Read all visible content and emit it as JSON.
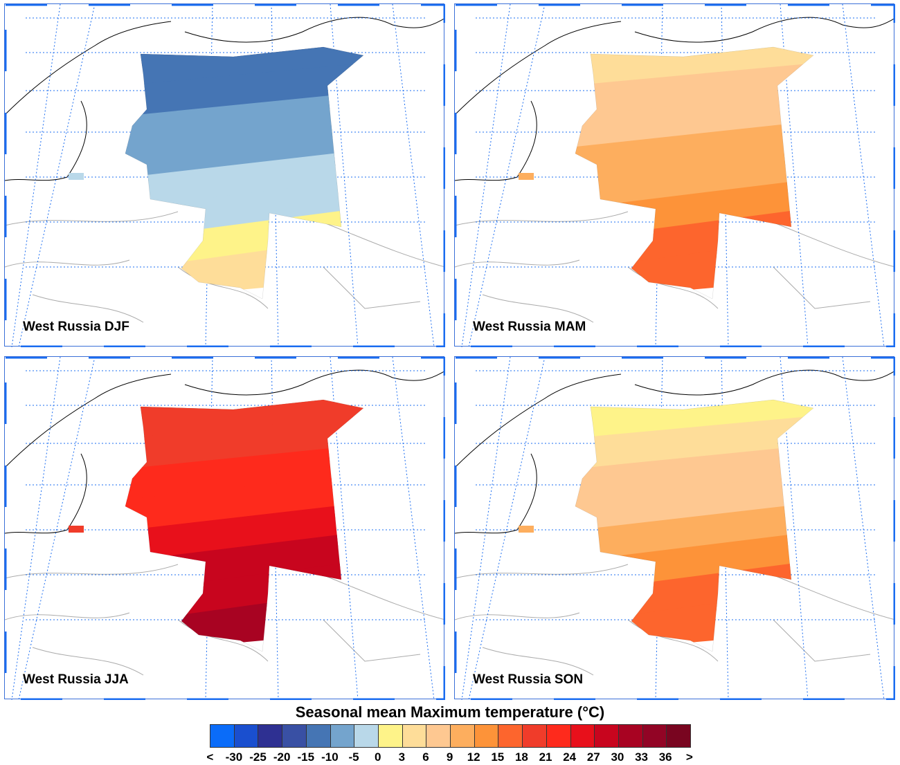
{
  "panels": [
    {
      "title": "West Russia DJF",
      "bands": [
        "#3950a4",
        "#4575b4",
        "#4575b4",
        "#74a4cd",
        "#74a4cd",
        "#b9d8e9",
        "#b9d8e9",
        "#fef389",
        "#fedd99"
      ]
    },
    {
      "title": "West Russia MAM",
      "bands": [
        "#fef389",
        "#fedd99",
        "#fec891",
        "#fec891",
        "#fdae5e",
        "#fdae5e",
        "#fd9339",
        "#fd652d",
        "#fd652d"
      ]
    },
    {
      "title": "West Russia JJA",
      "bands": [
        "#fd652d",
        "#f03c2a",
        "#f03c2a",
        "#fe2a1c",
        "#fe2a1c",
        "#e8101b",
        "#c8051e",
        "#c8051e",
        "#a80322"
      ]
    },
    {
      "title": "West Russia SON",
      "bands": [
        "#fef389",
        "#fef389",
        "#fedd99",
        "#fec891",
        "#fec891",
        "#fdae5e",
        "#fd9339",
        "#fd652d",
        "#fd652d"
      ]
    }
  ],
  "colorbar": {
    "title": "Seasonal mean Maximum temperature (°C)",
    "colors": [
      "#0a6cf9",
      "#1a4fcf",
      "#2e3092",
      "#3950a4",
      "#4575b4",
      "#74a4cd",
      "#b9d8e9",
      "#fef389",
      "#fedd99",
      "#fec891",
      "#fdae5e",
      "#fd9339",
      "#fd652d",
      "#f03c2a",
      "#fe2a1c",
      "#e8101b",
      "#c8051e",
      "#a80322",
      "#920425",
      "#790520"
    ],
    "labels": [
      "<",
      "-30",
      "-25",
      "-20",
      "-15",
      "-10",
      "-5",
      "0",
      "3",
      "6",
      "9",
      "12",
      "15",
      "18",
      "21",
      "24",
      "27",
      "30",
      "33",
      "36",
      ">"
    ]
  }
}
